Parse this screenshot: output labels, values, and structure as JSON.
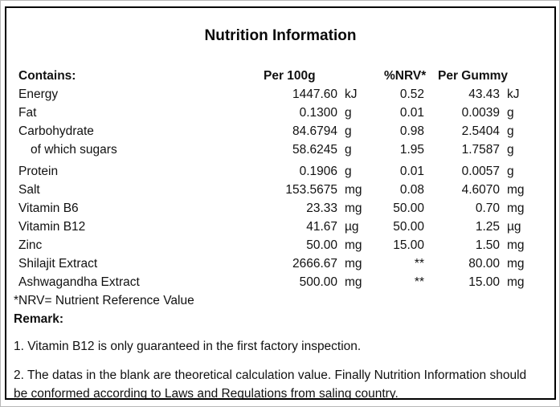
{
  "title": "Nutrition Information",
  "colors": {
    "border": "#000000",
    "background": "#ffffff",
    "text": "#111111"
  },
  "table": {
    "headers": {
      "contains": "Contains:",
      "per100g": "Per 100g",
      "nrv": "%NRV*",
      "per_gummy": "Per Gummy"
    },
    "rows": [
      {
        "label": "Energy",
        "per100g": "1447.60",
        "unit100g": "kJ",
        "nrv": "0.52",
        "gummy": "43.43",
        "unit_gummy": "kJ"
      },
      {
        "label": "Fat",
        "per100g": "0.1300",
        "unit100g": "g",
        "nrv": "0.01",
        "gummy": "0.0039",
        "unit_gummy": "g"
      },
      {
        "label": "Carbohydrate",
        "per100g": "84.6794",
        "unit100g": "g",
        "nrv": "0.98",
        "gummy": "2.5404",
        "unit_gummy": "g"
      },
      {
        "label": "of which sugars",
        "per100g": "58.6245",
        "unit100g": "g",
        "nrv": "1.95",
        "gummy": "1.7587",
        "unit_gummy": "g"
      },
      {
        "label": "Protein",
        "per100g": "0.1906",
        "unit100g": "g",
        "nrv": "0.01",
        "gummy": "0.0057",
        "unit_gummy": "g"
      },
      {
        "label": "Salt",
        "per100g": "153.5675",
        "unit100g": "mg",
        "nrv": "0.08",
        "gummy": "4.6070",
        "unit_gummy": "mg"
      },
      {
        "label": "Vitamin B6",
        "per100g": "23.33",
        "unit100g": "mg",
        "nrv": "50.00",
        "gummy": "0.70",
        "unit_gummy": "mg"
      },
      {
        "label": "Vitamin B12",
        "per100g": "41.67",
        "unit100g": "µg",
        "nrv": "50.00",
        "gummy": "1.25",
        "unit_gummy": "µg"
      },
      {
        "label": "Zinc",
        "per100g": "50.00",
        "unit100g": "mg",
        "nrv": "15.00",
        "gummy": "1.50",
        "unit_gummy": "mg"
      },
      {
        "label": "Shilajit Extract",
        "per100g": "2666.67",
        "unit100g": "mg",
        "nrv": "**",
        "gummy": "80.00",
        "unit_gummy": "mg"
      },
      {
        "label": "Ashwagandha Extract",
        "per100g": "500.00",
        "unit100g": "mg",
        "nrv": "**",
        "gummy": "15.00",
        "unit_gummy": "mg"
      }
    ]
  },
  "footnote": "*NRV= Nutrient Reference Value",
  "remark": {
    "heading": "Remark:",
    "items": [
      "1. Vitamin B12 is only guaranteed in the first factory inspection.",
      "2. The datas in the blank are theoretical calculation value. Finally Nutrition Information should be conformed according to Laws and Regulations from saling country."
    ]
  }
}
